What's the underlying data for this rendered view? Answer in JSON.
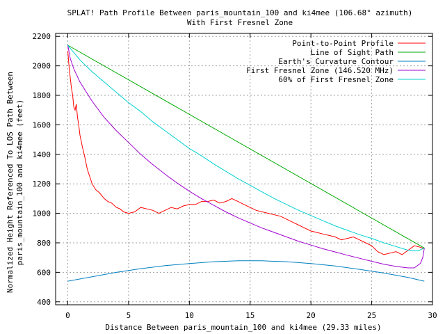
{
  "chart_data": {
    "type": "line",
    "title": "SPLAT! Path Profile Between paris_mountain_100 and ki4mee (106.68° azimuth)",
    "subtitle": "With First Fresnel Zone",
    "xlabel": "Distance Between paris_mountain_100 and ki4mee (29.33 miles)",
    "ylabel_line1": "Normalized Height Referenced To LOS Path Between",
    "ylabel_line2": "paris_mountain_100 and ki4mee (feet)",
    "xlim": [
      -1,
      30
    ],
    "ylim": [
      380,
      2220
    ],
    "x_ticks": [
      0,
      5,
      10,
      15,
      20,
      25,
      30
    ],
    "y_ticks": [
      400,
      600,
      800,
      1000,
      1200,
      1400,
      1600,
      1800,
      2000,
      2200
    ],
    "grid": true,
    "legend_position": "top-right",
    "path_length": 29.33,
    "series": [
      {
        "name": "Point-to-Point Profile",
        "color": "#ff0000",
        "points": [
          [
            0,
            2100
          ],
          [
            0.1,
            2000
          ],
          [
            0.2,
            1920
          ],
          [
            0.3,
            1850
          ],
          [
            0.4,
            1800
          ],
          [
            0.5,
            1720
          ],
          [
            0.6,
            1700
          ],
          [
            0.7,
            1740
          ],
          [
            0.8,
            1650
          ],
          [
            0.9,
            1600
          ],
          [
            1.0,
            1530
          ],
          [
            1.2,
            1450
          ],
          [
            1.4,
            1380
          ],
          [
            1.6,
            1300
          ],
          [
            1.8,
            1250
          ],
          [
            2.0,
            1200
          ],
          [
            2.3,
            1160
          ],
          [
            2.6,
            1140
          ],
          [
            3.0,
            1100
          ],
          [
            3.3,
            1080
          ],
          [
            3.6,
            1070
          ],
          [
            4.0,
            1040
          ],
          [
            4.3,
            1030
          ],
          [
            4.6,
            1010
          ],
          [
            5.0,
            1000
          ],
          [
            5.5,
            1010
          ],
          [
            6.0,
            1040
          ],
          [
            6.5,
            1030
          ],
          [
            7.0,
            1020
          ],
          [
            7.5,
            1000
          ],
          [
            8.0,
            1020
          ],
          [
            8.5,
            1040
          ],
          [
            9.0,
            1030
          ],
          [
            9.5,
            1050
          ],
          [
            10.0,
            1060
          ],
          [
            10.5,
            1060
          ],
          [
            11.0,
            1080
          ],
          [
            11.5,
            1080
          ],
          [
            12.0,
            1090
          ],
          [
            12.5,
            1070
          ],
          [
            13.0,
            1080
          ],
          [
            13.5,
            1100
          ],
          [
            14.0,
            1080
          ],
          [
            14.5,
            1060
          ],
          [
            15.0,
            1040
          ],
          [
            15.5,
            1020
          ],
          [
            16.0,
            1010
          ],
          [
            16.5,
            1000
          ],
          [
            17.0,
            990
          ],
          [
            17.5,
            980
          ],
          [
            18.0,
            960
          ],
          [
            18.5,
            940
          ],
          [
            19.0,
            920
          ],
          [
            19.5,
            900
          ],
          [
            20.0,
            880
          ],
          [
            20.5,
            870
          ],
          [
            21.0,
            860
          ],
          [
            21.5,
            850
          ],
          [
            22.0,
            840
          ],
          [
            22.5,
            820
          ],
          [
            23.0,
            830
          ],
          [
            23.5,
            840
          ],
          [
            24.0,
            820
          ],
          [
            24.5,
            800
          ],
          [
            25.0,
            780
          ],
          [
            25.5,
            740
          ],
          [
            26.0,
            720
          ],
          [
            26.5,
            730
          ],
          [
            27.0,
            740
          ],
          [
            27.5,
            720
          ],
          [
            28.0,
            750
          ],
          [
            28.5,
            780
          ],
          [
            29.0,
            770
          ],
          [
            29.33,
            760
          ]
        ]
      },
      {
        "name": "Line of Sight Path",
        "color": "#00aa00",
        "points": [
          [
            0,
            2140
          ],
          [
            29.33,
            765
          ]
        ]
      },
      {
        "name": "Earth's Curvature Contour",
        "color": "#0080c0",
        "points": [
          [
            0,
            540
          ],
          [
            2,
            570
          ],
          [
            4,
            600
          ],
          [
            6,
            625
          ],
          [
            8,
            645
          ],
          [
            10,
            660
          ],
          [
            12,
            672
          ],
          [
            14,
            678
          ],
          [
            16,
            678
          ],
          [
            18,
            672
          ],
          [
            20,
            660
          ],
          [
            22,
            643
          ],
          [
            24,
            620
          ],
          [
            26,
            595
          ],
          [
            28,
            565
          ],
          [
            29.33,
            540
          ]
        ]
      },
      {
        "name": "First Fresnel Zone (146.520 MHz)",
        "color": "#a000d0",
        "points": [
          [
            0,
            2140
          ],
          [
            0.2,
            2050
          ],
          [
            0.5,
            1980
          ],
          [
            1,
            1890
          ],
          [
            2,
            1760
          ],
          [
            3,
            1650
          ],
          [
            4,
            1560
          ],
          [
            5,
            1480
          ],
          [
            6,
            1400
          ],
          [
            7,
            1330
          ],
          [
            8,
            1265
          ],
          [
            9,
            1205
          ],
          [
            10,
            1150
          ],
          [
            11,
            1100
          ],
          [
            12,
            1055
          ],
          [
            13,
            1010
          ],
          [
            14,
            970
          ],
          [
            15,
            935
          ],
          [
            16,
            900
          ],
          [
            17,
            870
          ],
          [
            18,
            840
          ],
          [
            19,
            810
          ],
          [
            20,
            785
          ],
          [
            21,
            760
          ],
          [
            22,
            738
          ],
          [
            23,
            716
          ],
          [
            24,
            695
          ],
          [
            25,
            675
          ],
          [
            26,
            655
          ],
          [
            27,
            640
          ],
          [
            28,
            630
          ],
          [
            28.5,
            630
          ],
          [
            29,
            660
          ],
          [
            29.2,
            700
          ],
          [
            29.33,
            765
          ]
        ]
      },
      {
        "name": "60% of First Fresnel Zone",
        "color": "#00d0d0",
        "points": [
          [
            0,
            2140
          ],
          [
            0.5,
            2090
          ],
          [
            1,
            2040
          ],
          [
            2,
            1960
          ],
          [
            3,
            1890
          ],
          [
            4,
            1820
          ],
          [
            5,
            1750
          ],
          [
            6,
            1690
          ],
          [
            7,
            1620
          ],
          [
            8,
            1560
          ],
          [
            9,
            1500
          ],
          [
            10,
            1440
          ],
          [
            11,
            1390
          ],
          [
            12,
            1335
          ],
          [
            13,
            1285
          ],
          [
            14,
            1235
          ],
          [
            15,
            1190
          ],
          [
            16,
            1145
          ],
          [
            17,
            1100
          ],
          [
            18,
            1060
          ],
          [
            19,
            1020
          ],
          [
            20,
            985
          ],
          [
            21,
            950
          ],
          [
            22,
            915
          ],
          [
            23,
            885
          ],
          [
            24,
            855
          ],
          [
            25,
            830
          ],
          [
            26,
            800
          ],
          [
            27,
            775
          ],
          [
            28,
            750
          ],
          [
            28.8,
            745
          ],
          [
            29.33,
            765
          ]
        ]
      }
    ]
  }
}
